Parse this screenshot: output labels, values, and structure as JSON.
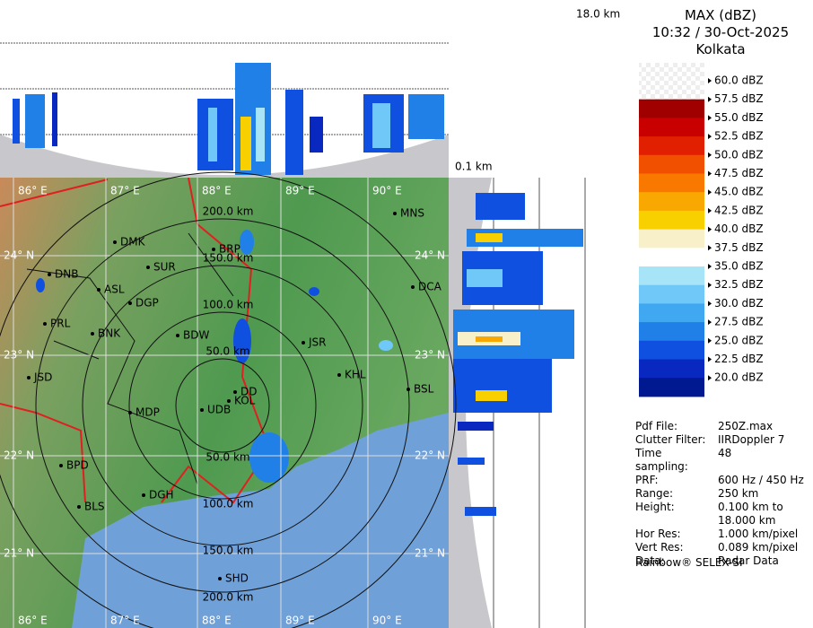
{
  "header": {
    "title": "MAX (dBZ)",
    "datetime": "10:32 / 30-Oct-2025",
    "location": "Kolkata"
  },
  "profile": {
    "top_height": "18.0 km",
    "bottom_height": "0.1 km"
  },
  "legend": [
    {
      "label": "60.0 dBZ",
      "color": "#ffffff"
    },
    {
      "label": "57.5 dBZ",
      "color": "#a00000"
    },
    {
      "label": "55.0 dBZ",
      "color": "#c80000"
    },
    {
      "label": "52.5 dBZ",
      "color": "#e02000"
    },
    {
      "label": "50.0 dBZ",
      "color": "#f05000"
    },
    {
      "label": "47.5 dBZ",
      "color": "#f87800"
    },
    {
      "label": "45.0 dBZ",
      "color": "#f8a800"
    },
    {
      "label": "42.5 dBZ",
      "color": "#f8d000"
    },
    {
      "label": "40.0 dBZ",
      "color": "#f8f0c8"
    },
    {
      "label": "37.5 dBZ",
      "color": "#ffffff"
    },
    {
      "label": "35.0 dBZ",
      "color": "#a8e4f8"
    },
    {
      "label": "32.5 dBZ",
      "color": "#70c8f8"
    },
    {
      "label": "30.0 dBZ",
      "color": "#40a8f0"
    },
    {
      "label": "27.5 dBZ",
      "color": "#2080e8"
    },
    {
      "label": "25.0 dBZ",
      "color": "#1050e0"
    },
    {
      "label": "22.5 dBZ",
      "color": "#0828c0"
    },
    {
      "label": "20.0 dBZ",
      "color": "#001890"
    }
  ],
  "map": {
    "lon_labels": [
      "86° E",
      "87° E",
      "88° E",
      "89° E",
      "90° E"
    ],
    "lat_labels": [
      "24° N",
      "23° N",
      "22° N",
      "21° N"
    ],
    "range_labels": [
      "50.0 km",
      "100.0 km",
      "150.0 km",
      "200.0 km"
    ],
    "places": [
      "MNS",
      "DMK",
      "BRP",
      "SUR",
      "DNB",
      "ASL",
      "DCA",
      "DGP",
      "PRL",
      "BNK",
      "BDW",
      "JSR",
      "KHL",
      "JSD",
      "BSL",
      "DD",
      "KOL",
      "MDP",
      "UDB",
      "BPD",
      "DGH",
      "BLS",
      "SHD"
    ]
  },
  "info": [
    [
      "Pdf File:",
      "250Z.max"
    ],
    [
      "Clutter Filter:",
      "IIRDoppler 7"
    ],
    [
      "Time sampling:",
      "48"
    ],
    [
      "PRF:",
      "600 Hz / 450 Hz"
    ],
    [
      "Range:",
      "250 km"
    ],
    [
      "Height:",
      "0.100 km to 18.000 km"
    ],
    [
      "Hor Res:",
      "1.000 km/pixel"
    ],
    [
      "Vert Res:",
      "0.089 km/pixel"
    ],
    [
      "Data:",
      "Radar Data"
    ]
  ],
  "footer": "Rainbow® SELEX-SI"
}
